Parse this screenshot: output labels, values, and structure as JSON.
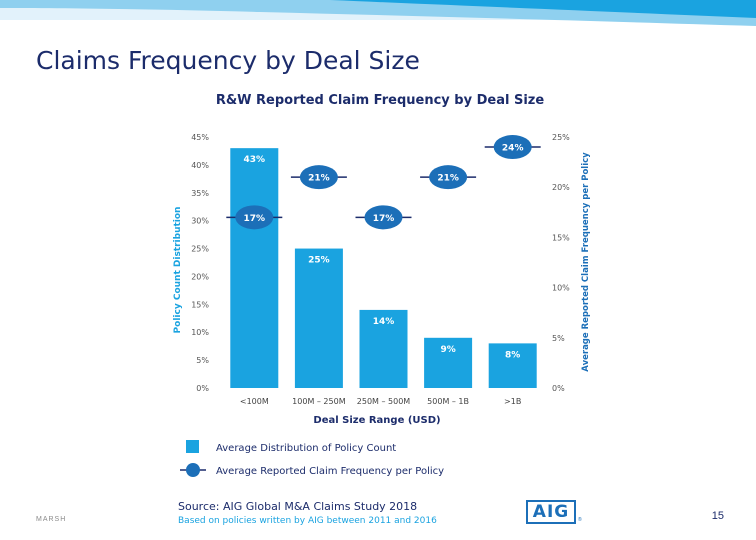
{
  "slide": {
    "title": "Claims Frequency by Deal Size",
    "page_number": "15",
    "footer_brand": "MARSH",
    "logo_text": "AIG",
    "logo_reg": "®"
  },
  "source": {
    "line1": "Source: AIG Global M&A Claims Study 2018",
    "line2": "Based on policies written by AIG between 2011 and 2016"
  },
  "colors": {
    "bar": "#1aa3e0",
    "marker": "#1c6fb8",
    "navy": "#1c2c6b",
    "band_light": "#e2f2fb",
    "band_mid": "#8fd0ef",
    "band_dark": "#1aa3e0"
  },
  "chart_data": {
    "type": "bar",
    "title": "R&W Reported Claim Frequency by Deal Size",
    "xlabel": "Deal Size Range (USD)",
    "ylabel": "Policy Count Distribution",
    "y2label": "Average Reported Claim Frequency per Policy",
    "categories": [
      "<100M",
      "100M – 250M",
      "250M – 500M",
      "500M – 1B",
      ">1B"
    ],
    "ylim": [
      0,
      45
    ],
    "y2lim": [
      0,
      25
    ],
    "yticks": [
      "0%",
      "5%",
      "10%",
      "15%",
      "20%",
      "25%",
      "30%",
      "35%",
      "40%",
      "45%"
    ],
    "y2ticks": [
      "0%",
      "5%",
      "10%",
      "15%",
      "20%",
      "25%"
    ],
    "grid": false,
    "legend_position": "bottom-left",
    "series": [
      {
        "name": "Average Distribution of Policy Count",
        "kind": "bar",
        "axis": "left",
        "values": [
          43,
          25,
          14,
          9,
          8
        ],
        "labels": [
          "43%",
          "25%",
          "14%",
          "9%",
          "8%"
        ]
      },
      {
        "name": "Average Reported Claim Frequency per Policy",
        "kind": "marker",
        "axis": "right",
        "values": [
          17,
          21,
          17,
          21,
          24
        ],
        "labels": [
          "17%",
          "21%",
          "17%",
          "21%",
          "24%"
        ]
      }
    ]
  }
}
